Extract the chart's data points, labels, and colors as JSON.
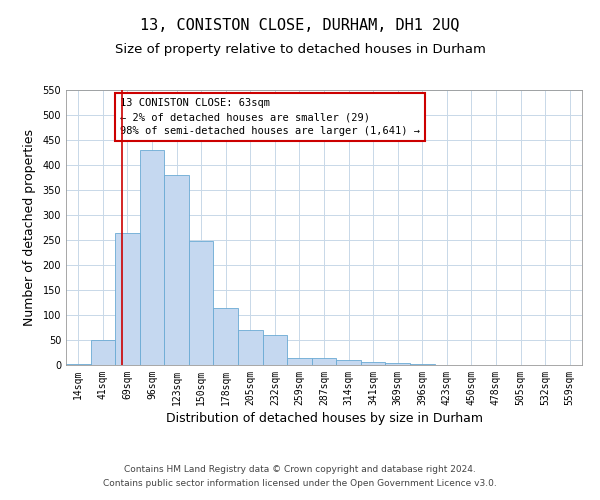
{
  "title": "13, CONISTON CLOSE, DURHAM, DH1 2UQ",
  "subtitle": "Size of property relative to detached houses in Durham",
  "xlabel": "Distribution of detached houses by size in Durham",
  "ylabel": "Number of detached properties",
  "categories": [
    "14sqm",
    "41sqm",
    "69sqm",
    "96sqm",
    "123sqm",
    "150sqm",
    "178sqm",
    "205sqm",
    "232sqm",
    "259sqm",
    "287sqm",
    "314sqm",
    "341sqm",
    "369sqm",
    "396sqm",
    "423sqm",
    "450sqm",
    "478sqm",
    "505sqm",
    "532sqm",
    "559sqm"
  ],
  "values": [
    3,
    50,
    265,
    430,
    380,
    248,
    115,
    70,
    60,
    15,
    15,
    10,
    6,
    5,
    3,
    1,
    0,
    1,
    0,
    0,
    0
  ],
  "bar_color": "#c5d8f0",
  "bar_edge_color": "#6aaad4",
  "ylim": [
    0,
    550
  ],
  "yticks": [
    0,
    50,
    100,
    150,
    200,
    250,
    300,
    350,
    400,
    450,
    500,
    550
  ],
  "annotation_text": "13 CONISTON CLOSE: 63sqm\n← 2% of detached houses are smaller (29)\n98% of semi-detached houses are larger (1,641) →",
  "annotation_box_color": "#ffffff",
  "annotation_box_edge": "#cc0000",
  "property_line_color": "#cc0000",
  "footer_line1": "Contains HM Land Registry data © Crown copyright and database right 2024.",
  "footer_line2": "Contains public sector information licensed under the Open Government Licence v3.0.",
  "bg_color": "#ffffff",
  "grid_color": "#c8d8e8",
  "title_fontsize": 11,
  "subtitle_fontsize": 9.5,
  "axis_label_fontsize": 9,
  "tick_fontsize": 7,
  "annotation_fontsize": 7.5,
  "footer_fontsize": 6.5
}
